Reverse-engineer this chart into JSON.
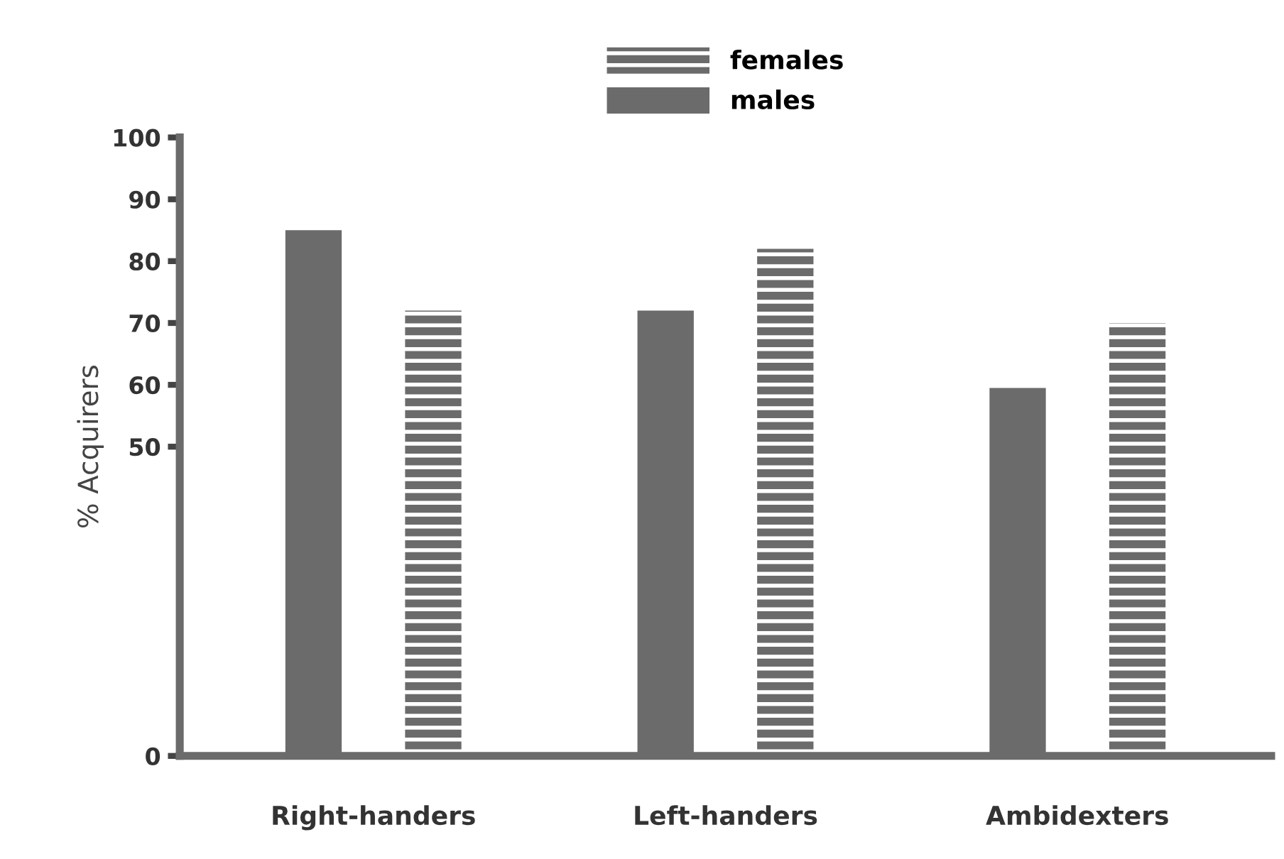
{
  "chart_data": {
    "type": "bar",
    "ylabel": "% Acquirers",
    "categories": [
      "Right-handers",
      "Left-handers",
      "Ambidexters"
    ],
    "series": [
      {
        "name": "males",
        "color": "#6b6b6b",
        "values": [
          85,
          72,
          59.5
        ]
      },
      {
        "name": "females",
        "color": "#6b6b6b",
        "values": [
          72,
          82,
          70
        ]
      }
    ],
    "ylim": [
      0,
      100
    ],
    "yticks": [
      0,
      50,
      60,
      70,
      80,
      90,
      100
    ],
    "grid": false,
    "legend": "top"
  }
}
